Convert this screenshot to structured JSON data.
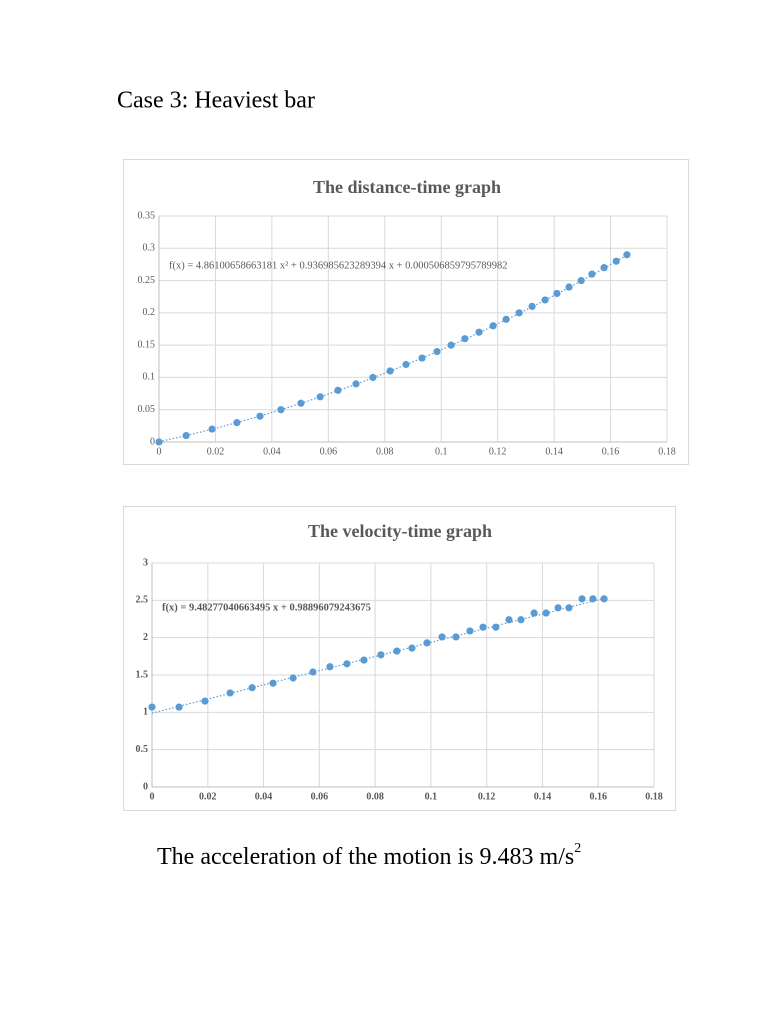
{
  "heading": "Case 3: Heaviest bar",
  "chart_data": [
    {
      "type": "scatter",
      "title": "The distance-time graph",
      "x": [
        0,
        0.0096,
        0.0188,
        0.0276,
        0.0358,
        0.0432,
        0.0503,
        0.0571,
        0.0634,
        0.0698,
        0.0758,
        0.0819,
        0.0875,
        0.0932,
        0.0985,
        0.1035,
        0.1084,
        0.1134,
        0.1184,
        0.123,
        0.1276,
        0.1322,
        0.1368,
        0.141,
        0.1453,
        0.1496,
        0.1534,
        0.1577,
        0.162,
        0.1658
      ],
      "values": [
        0,
        0.01,
        0.02,
        0.03,
        0.04,
        0.05,
        0.06,
        0.07,
        0.08,
        0.09,
        0.1,
        0.11,
        0.12,
        0.13,
        0.14,
        0.15,
        0.16,
        0.17,
        0.18,
        0.19,
        0.2,
        0.21,
        0.22,
        0.23,
        0.24,
        0.25,
        0.26,
        0.27,
        0.28,
        0.29
      ],
      "color": "#5b9bd5",
      "xlim": [
        0,
        0.18
      ],
      "xticks": [
        0,
        0.02,
        0.04,
        0.06,
        0.08,
        0.1,
        0.12,
        0.14,
        0.16,
        0.18
      ],
      "ylim": [
        0,
        0.35
      ],
      "yticks": [
        0,
        0.05,
        0.1,
        0.15,
        0.2,
        0.25,
        0.3,
        0.35
      ],
      "grid": true,
      "trendline": {
        "label": "f(x) = 4.86100658663181 x² + 0.936985623289394 x + 0.000506859795789982",
        "coefficients": [
          4.86100658663181,
          0.936985623289394,
          0.000506859795789982
        ]
      }
    },
    {
      "type": "scatter",
      "title": "The velocity-time graph",
      "x": [
        0,
        0.0097,
        0.019,
        0.028,
        0.0359,
        0.0434,
        0.0506,
        0.0577,
        0.0638,
        0.0699,
        0.076,
        0.0821,
        0.0878,
        0.0932,
        0.0986,
        0.104,
        0.109,
        0.114,
        0.1187,
        0.1233,
        0.128,
        0.1323,
        0.137,
        0.1413,
        0.1456,
        0.1495,
        0.1542,
        0.1581,
        0.1621
      ],
      "values": [
        1.07,
        1.07,
        1.15,
        1.26,
        1.33,
        1.39,
        1.46,
        1.54,
        1.61,
        1.65,
        1.7,
        1.77,
        1.82,
        1.86,
        1.93,
        2.01,
        2.01,
        2.09,
        2.14,
        2.14,
        2.24,
        2.24,
        2.33,
        2.33,
        2.4,
        2.4,
        2.52,
        2.52,
        2.52
      ],
      "color": "#5b9bd5",
      "xlim": [
        0,
        0.18
      ],
      "xticks": [
        0,
        0.02,
        0.04,
        0.06,
        0.08,
        0.1,
        0.12,
        0.14,
        0.16,
        0.18
      ],
      "ylim": [
        0,
        3
      ],
      "yticks": [
        0,
        0.5,
        1,
        1.5,
        2,
        2.5,
        3
      ],
      "grid": true,
      "trendline": {
        "label": "f(x) = 9.48277040663495 x + 0.98896079243675",
        "coefficients": [
          9.48277040663495,
          0.98896079243675
        ]
      }
    }
  ],
  "conclusion": {
    "text": "The acceleration of the motion is 9.483 m/s",
    "superscript": "2"
  }
}
